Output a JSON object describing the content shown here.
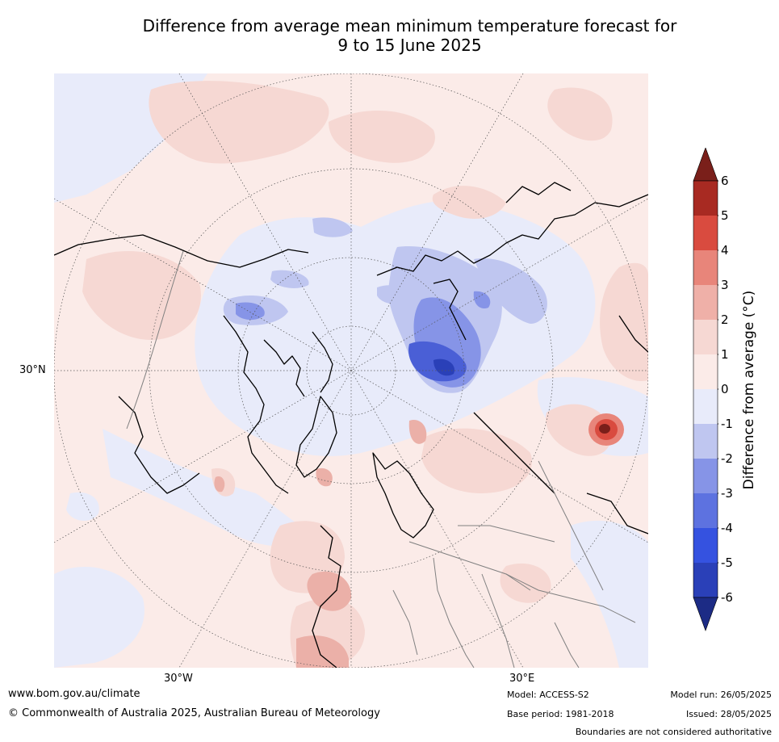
{
  "title_line1": "Difference from average mean minimum temperature forecast for",
  "title_line2": "9 to 15 June 2025",
  "map": {
    "lat_label": "30°N",
    "lon_labels": [
      "30°W",
      "30°E"
    ],
    "projection": "north polar stereographic",
    "colors": {
      "ocean_neutral": "#fbebe8",
      "slight_cool": "#e8ebfa",
      "cool": "#bfc6f0",
      "cooler": "#8694e7",
      "coldest": "#4a5fd6",
      "slight_warm": "#f6d8d3",
      "warm": "#ebb0a8",
      "hot": "#c23a2f",
      "coast": "#000000",
      "borders": "#808080"
    }
  },
  "colorbar": {
    "label": "Difference from average ($^\\circ$C)",
    "label_display": "Difference from average (°C)",
    "ticks": [
      "6",
      "5",
      "4",
      "3",
      "2",
      "1",
      "0",
      "-1",
      "-2",
      "-3",
      "-4",
      "-5",
      "-6"
    ],
    "bins": [
      {
        "range": "above 6",
        "color": "#7a1f1a"
      },
      {
        "range": "5 to 6",
        "color": "#a82a22"
      },
      {
        "range": "4 to 5",
        "color": "#d94b3f"
      },
      {
        "range": "3 to 4",
        "color": "#e8857a"
      },
      {
        "range": "2 to 3",
        "color": "#efb0a8"
      },
      {
        "range": "1 to 2",
        "color": "#f6d8d3"
      },
      {
        "range": "0 to 1",
        "color": "#fbebe8"
      },
      {
        "range": "-1 to 0",
        "color": "#e8ebfa"
      },
      {
        "range": "-2 to -1",
        "color": "#bfc6f0"
      },
      {
        "range": "-3 to -2",
        "color": "#8694e7"
      },
      {
        "range": "-4 to -3",
        "color": "#5d72e0"
      },
      {
        "range": "-5 to -4",
        "color": "#3552e0"
      },
      {
        "range": "-6 to -5",
        "color": "#2a40b8"
      },
      {
        "range": "below -6",
        "color": "#1c2b85"
      }
    ]
  },
  "footer": {
    "website": "www.bom.gov.au/climate",
    "copyright": "© Commonwealth of Australia 2025, Australian Bureau of Meteorology",
    "model": "Model: ACCESS-S2",
    "base_period": "Base period: 1981-2018",
    "model_run": "Model run: 26/05/2025",
    "issued": "Issued: 28/05/2025",
    "disclaimer": "Boundaries are not considered authoritative"
  }
}
